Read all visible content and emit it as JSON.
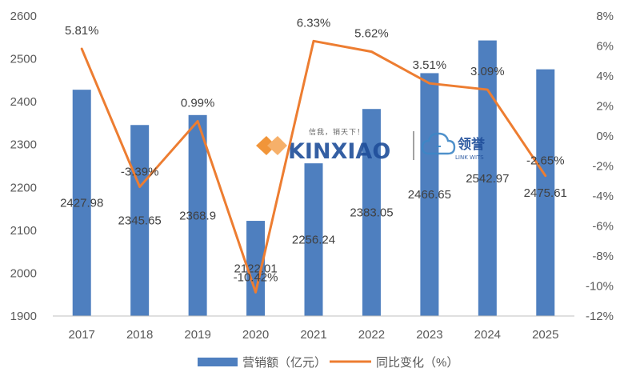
{
  "chart_data": {
    "type": "bar",
    "categories": [
      "2017",
      "2018",
      "2019",
      "2020",
      "2021",
      "2022",
      "2023",
      "2024",
      "2025"
    ],
    "series": [
      {
        "name": "营销额（亿元）",
        "type": "bar",
        "axis": "left",
        "color": "#4e7fbf",
        "values": [
          2427.98,
          2345.65,
          2368.9,
          2122.01,
          2256.24,
          2383.05,
          2466.65,
          2542.97,
          2475.61
        ],
        "labels": [
          "2427.98",
          "2345.65",
          "2368.9",
          "2122.01",
          "2256.24",
          "2383.05",
          "2466.65",
          "2542.97",
          "2475.61"
        ]
      },
      {
        "name": "同比变化（%）",
        "type": "line",
        "axis": "right",
        "color": "#ed7d31",
        "values": [
          5.81,
          -3.39,
          0.99,
          -10.42,
          6.33,
          5.62,
          3.51,
          3.09,
          -2.65
        ],
        "labels": [
          "5.81%",
          "-3.39%",
          "0.99%",
          "-10.42%",
          "6.33%",
          "5.62%",
          "3.51%",
          "3.09%",
          "-2.65%"
        ]
      }
    ],
    "y_left": {
      "range": [
        1900,
        2600
      ],
      "ticks": [
        "1900",
        "2000",
        "2100",
        "2200",
        "2300",
        "2400",
        "2500",
        "2600"
      ]
    },
    "y_right": {
      "range": [
        -12,
        8
      ],
      "ticks": [
        "-12%",
        "-10%",
        "-8%",
        "-6%",
        "-4%",
        "-2%",
        "0%",
        "2%",
        "4%",
        "6%",
        "8%"
      ]
    },
    "grid": false,
    "legend_position": "bottom"
  },
  "watermark": {
    "brand": "KINXIAO",
    "slogan": "信我，销天下！",
    "partner_name": "领誉",
    "partner_sub": "LINK WITS"
  }
}
